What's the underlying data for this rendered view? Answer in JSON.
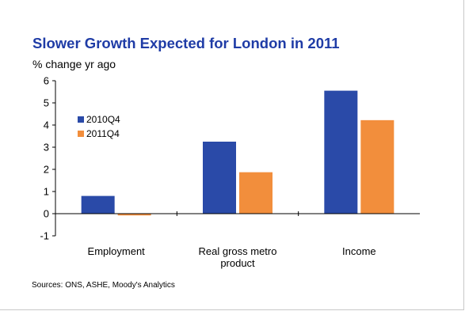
{
  "chart_data": {
    "type": "bar",
    "title": "Slower Growth Expected for London in 2011",
    "ylabel": "% change yr ago",
    "xlabel": "",
    "categories": [
      "Employment",
      "Real gross metro product",
      "Income"
    ],
    "category_lines": [
      [
        "Employment"
      ],
      [
        "Real gross metro",
        "product"
      ],
      [
        "Income"
      ]
    ],
    "series": [
      {
        "name": "2010Q4",
        "color": "#2a4aa8",
        "values": [
          0.8,
          3.25,
          5.55
        ]
      },
      {
        "name": "2011Q4",
        "color": "#f28e3c",
        "values": [
          -0.08,
          1.87,
          4.22
        ]
      }
    ],
    "ylim": [
      -1,
      6
    ],
    "yticks": [
      "-1",
      "0",
      "1",
      "2",
      "3",
      "4",
      "5",
      "6"
    ],
    "legend_position": "upper-left",
    "grid": false,
    "source": "Sources: ONS, ASHE, Moody's Analytics"
  }
}
